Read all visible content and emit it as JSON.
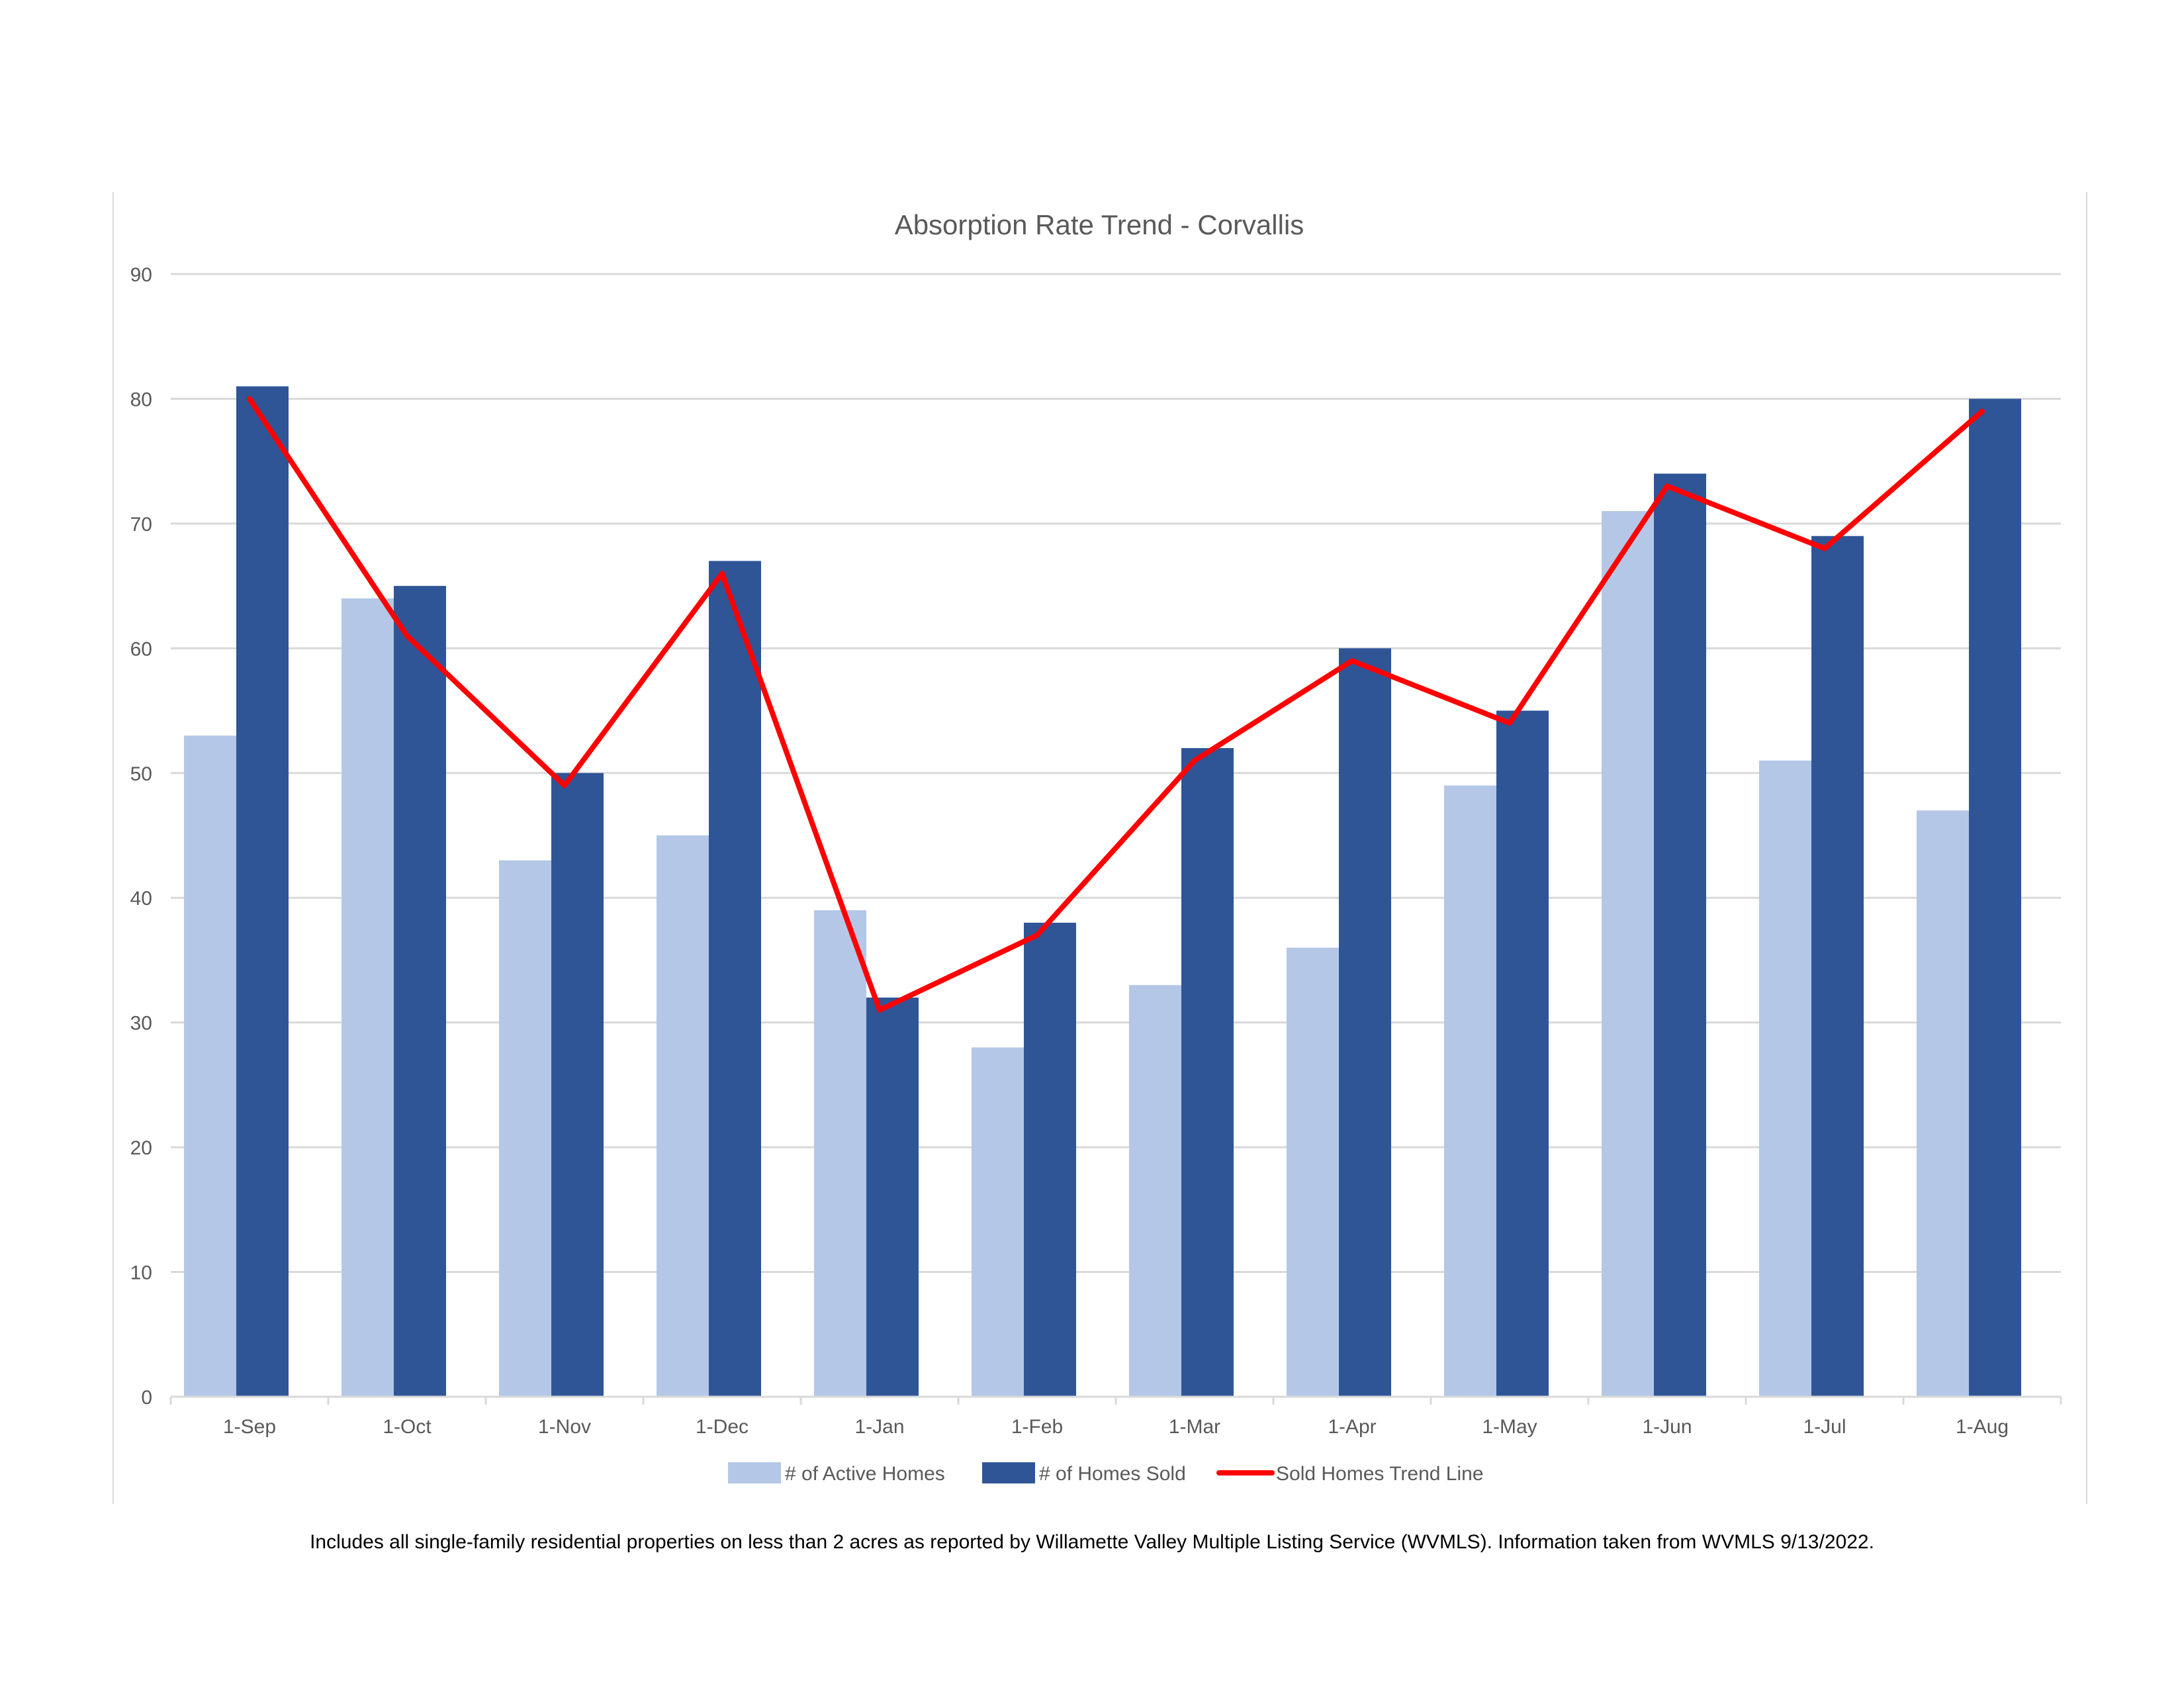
{
  "chart_data": {
    "type": "bar",
    "title": "Absorption Rate Trend - Corvallis",
    "xlabel": "",
    "ylabel": "",
    "ylim": [
      0,
      90
    ],
    "yticks": [
      0,
      10,
      20,
      30,
      40,
      50,
      60,
      70,
      80,
      90
    ],
    "grid": true,
    "legend_position": "bottom",
    "categories": [
      "1-Sep",
      "1-Oct",
      "1-Nov",
      "1-Dec",
      "1-Jan",
      "1-Feb",
      "1-Mar",
      "1-Apr",
      "1-May",
      "1-Jun",
      "1-Jul",
      "1-Aug"
    ],
    "series": [
      {
        "name": "# of Active Homes",
        "kind": "bar",
        "color": "#b4c7e7",
        "values": [
          53,
          64,
          43,
          45,
          39,
          28,
          33,
          36,
          49,
          71,
          51,
          47
        ]
      },
      {
        "name": "# of Homes Sold",
        "kind": "bar",
        "color": "#2f5597",
        "values": [
          81,
          65,
          50,
          67,
          32,
          38,
          52,
          60,
          55,
          74,
          69,
          80
        ]
      },
      {
        "name": "Sold Homes Trend Line",
        "kind": "line",
        "color": "#ff0000",
        "values": [
          80,
          61,
          49,
          66,
          31,
          37,
          51,
          59,
          54,
          73,
          68,
          79
        ]
      }
    ]
  },
  "footnote": "Includes all single-family residential properties on less than 2 acres as reported by Willamette Valley Multiple Listing Service (WVMLS). Information taken from WVMLS 9/13/2022."
}
